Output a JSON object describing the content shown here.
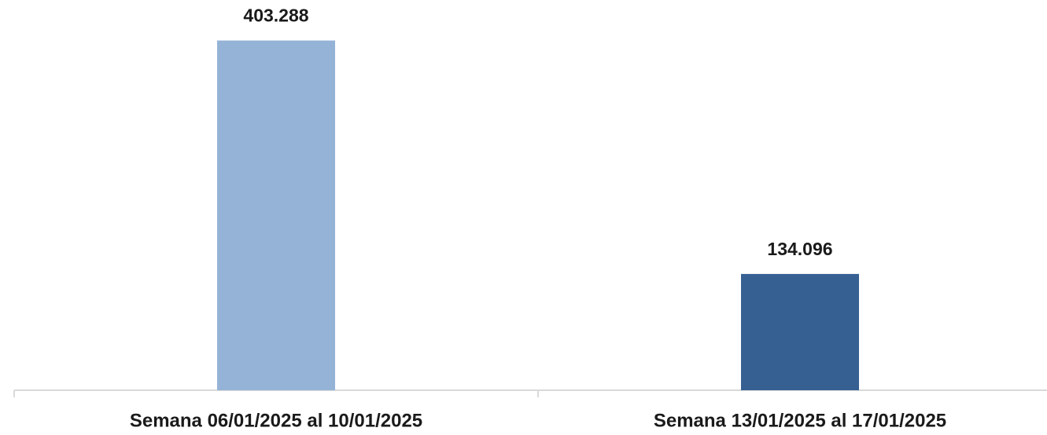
{
  "chart_data": {
    "type": "bar",
    "categories": [
      "Semana 06/01/2025 al 10/01/2025",
      "Semana 13/01/2025 al 17/01/2025"
    ],
    "values": [
      403288,
      134096
    ],
    "value_labels": [
      "403.288",
      "134.096"
    ],
    "colors": [
      "#95b3d7",
      "#366092"
    ],
    "ylim": [
      0,
      450000
    ],
    "grid": false
  }
}
